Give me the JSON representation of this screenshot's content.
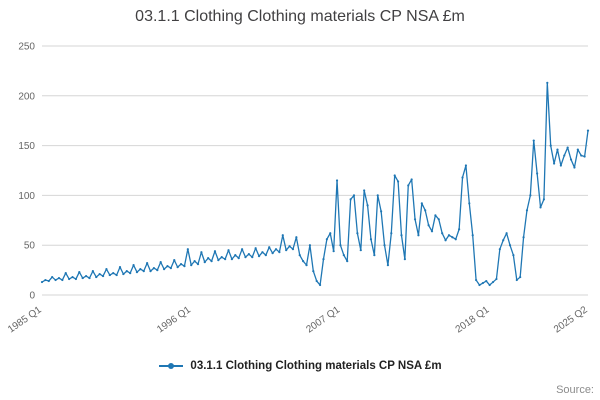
{
  "title": "03.1.1 Clothing Clothing materials CP NSA £m",
  "legend": {
    "label": "03.1.1 Clothing Clothing materials CP NSA £m"
  },
  "source_label": "Source:",
  "colors": {
    "line": "#1f77b4",
    "grid": "#d6d6d6",
    "tick_text": "#666666",
    "title_text": "#414042"
  },
  "chart_data": {
    "type": "line",
    "title": "03.1.1 Clothing Clothing materials CP NSA £m",
    "xlabel": "",
    "ylabel": "",
    "x_start": "1985 Q1",
    "x_end": "2025 Q2",
    "frequency": "quarterly",
    "ylim": [
      0,
      250
    ],
    "y_ticks": [
      0,
      50,
      100,
      150,
      200,
      250
    ],
    "x_ticks": [
      {
        "label": "1985 Q1",
        "index": 0
      },
      {
        "label": "1996 Q1",
        "index": 44
      },
      {
        "label": "2007 Q1",
        "index": 88
      },
      {
        "label": "2018 Q1",
        "index": 132
      },
      {
        "label": "2025 Q2",
        "index": 161
      }
    ],
    "grid": "horizontal",
    "legend_position": "bottom",
    "series": [
      {
        "name": "03.1.1 Clothing Clothing materials CP NSA £m",
        "values": [
          13,
          15,
          14,
          18,
          15,
          17,
          15,
          22,
          16,
          18,
          16,
          23,
          17,
          19,
          17,
          24,
          18,
          21,
          19,
          26,
          20,
          22,
          20,
          28,
          21,
          24,
          22,
          30,
          23,
          26,
          24,
          32,
          24,
          27,
          25,
          33,
          26,
          29,
          27,
          35,
          28,
          31,
          29,
          46,
          30,
          34,
          31,
          43,
          33,
          37,
          34,
          44,
          35,
          38,
          36,
          45,
          36,
          40,
          37,
          46,
          38,
          41,
          38,
          47,
          39,
          43,
          40,
          48,
          42,
          46,
          43,
          60,
          45,
          49,
          46,
          58,
          40,
          34,
          30,
          50,
          24,
          14,
          10,
          36,
          56,
          62,
          44,
          115,
          50,
          40,
          34,
          96,
          100,
          62,
          45,
          105,
          90,
          56,
          40,
          100,
          84,
          50,
          30,
          62,
          120,
          114,
          60,
          36,
          110,
          116,
          76,
          60,
          92,
          85,
          70,
          64,
          80,
          76,
          62,
          55,
          60,
          58,
          56,
          66,
          118,
          130,
          92,
          60,
          15,
          10,
          12,
          14,
          10,
          13,
          16,
          46,
          55,
          62,
          50,
          40,
          15,
          18,
          58,
          85,
          100,
          155,
          122,
          88,
          96,
          213,
          150,
          132,
          146,
          130,
          140,
          148,
          136,
          128,
          146,
          140,
          139,
          165
        ]
      }
    ]
  }
}
